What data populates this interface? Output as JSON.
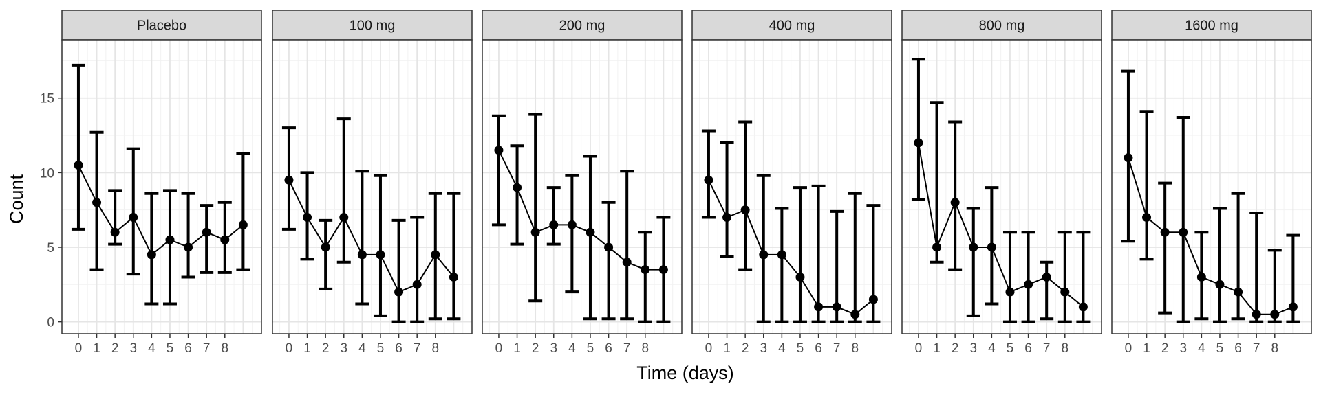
{
  "chart_data": {
    "type": "line",
    "xlabel": "Time (days)",
    "ylabel": "Count",
    "ylim": [
      -0.8,
      18.9
    ],
    "xlim": [
      -0.9,
      10.0
    ],
    "x_ticks": [
      0,
      1,
      2,
      3,
      4,
      5,
      6,
      7,
      8
    ],
    "y_ticks": [
      0,
      5,
      10,
      15
    ],
    "grid": true,
    "error_bars": true,
    "x": [
      0,
      1,
      2,
      3,
      4,
      5,
      6,
      7,
      8,
      9
    ],
    "panels": [
      {
        "name": "Placebo",
        "mean": [
          10.5,
          8,
          6,
          7,
          4.5,
          5.5,
          5,
          6,
          5.5,
          6.5
        ],
        "lower": [
          6.2,
          3.5,
          5.2,
          3.2,
          1.2,
          1.2,
          3.0,
          3.3,
          3.3,
          3.5
        ],
        "upper": [
          17.2,
          12.7,
          8.8,
          11.6,
          8.6,
          8.8,
          8.6,
          7.8,
          8.0,
          11.3
        ]
      },
      {
        "name": "100 mg",
        "mean": [
          9.5,
          7,
          5,
          7,
          4.5,
          4.5,
          2,
          2.5,
          4.5,
          3
        ],
        "lower": [
          6.2,
          4.2,
          2.2,
          4.0,
          1.2,
          0.4,
          0.0,
          0.0,
          0.2,
          0.2
        ],
        "upper": [
          13.0,
          10.0,
          6.8,
          13.6,
          10.1,
          9.8,
          6.8,
          7.0,
          8.6,
          8.6
        ]
      },
      {
        "name": "200 mg",
        "mean": [
          11.5,
          9,
          6,
          6.5,
          6.5,
          6,
          5,
          4,
          3.5,
          3.5
        ],
        "lower": [
          6.5,
          5.2,
          1.4,
          5.2,
          2.0,
          0.2,
          0.2,
          0.2,
          0.0,
          0.0
        ],
        "upper": [
          13.8,
          11.8,
          13.9,
          9.0,
          9.8,
          11.1,
          8.0,
          10.1,
          6.0,
          7.0
        ]
      },
      {
        "name": "400 mg",
        "mean": [
          9.5,
          7,
          7.5,
          4.5,
          4.5,
          3,
          1,
          1,
          0.5,
          1.5
        ],
        "lower": [
          7.0,
          4.4,
          3.5,
          0.0,
          0.0,
          0.0,
          0.0,
          0.0,
          0.0,
          0.0
        ],
        "upper": [
          12.8,
          12.0,
          13.4,
          9.8,
          7.6,
          9.0,
          9.1,
          7.4,
          8.6,
          7.8
        ]
      },
      {
        "name": "800 mg",
        "mean": [
          12,
          5,
          8,
          5,
          5,
          2,
          2.5,
          3,
          2,
          1
        ],
        "lower": [
          8.2,
          4.0,
          3.5,
          0.4,
          1.2,
          0.0,
          0.0,
          0.2,
          0.0,
          0.0
        ],
        "upper": [
          17.6,
          14.7,
          13.4,
          7.6,
          9.0,
          6.0,
          6.0,
          4.0,
          6.0,
          6.0
        ]
      },
      {
        "name": "1600 mg",
        "mean": [
          11,
          7,
          6,
          6,
          3,
          2.5,
          2,
          0.5,
          0.5,
          1
        ],
        "lower": [
          5.4,
          4.2,
          0.6,
          0.0,
          0.2,
          0.0,
          0.2,
          0.0,
          0.0,
          0.0
        ],
        "upper": [
          16.8,
          14.1,
          9.3,
          13.7,
          6.0,
          7.6,
          8.6,
          7.3,
          4.8,
          5.8
        ]
      }
    ]
  }
}
